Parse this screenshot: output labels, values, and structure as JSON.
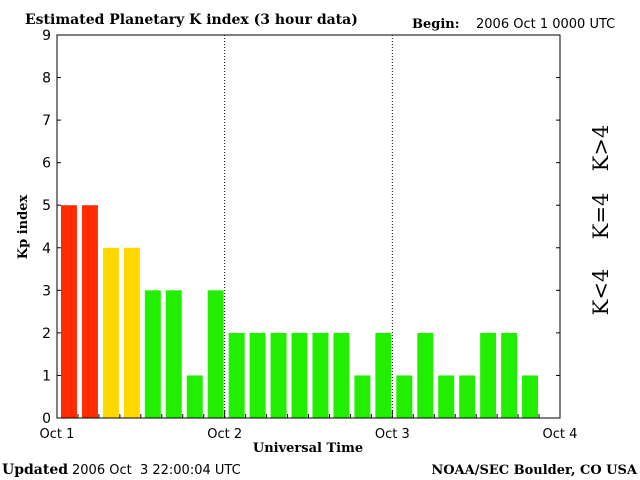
{
  "header": {
    "title": "Estimated Planetary K index (3 hour data)",
    "begin_label": "Begin:",
    "begin_value": "2006 Oct 1 0000 UTC"
  },
  "footer": {
    "updated_label": "Updated",
    "updated_value": "2006 Oct  3 22:00:04 UTC",
    "source": "NOAA/SEC Boulder, CO USA"
  },
  "legend": [
    {
      "label": "K>4",
      "color": "#ff2a00"
    },
    {
      "label": "K=4",
      "color": "#ffd800"
    },
    {
      "label": "K<4",
      "color": "#22ee00"
    }
  ],
  "chart_data": {
    "type": "bar",
    "title": "Estimated Planetary K index (3 hour data)",
    "xlabel": "Universal Time",
    "ylabel": "Kp index",
    "ylim": [
      0,
      9
    ],
    "yticks": [
      0,
      1,
      2,
      3,
      4,
      5,
      6,
      7,
      8,
      9
    ],
    "xlim_days": [
      0,
      3
    ],
    "xticks": [
      "Oct 1",
      "Oct 2",
      "Oct 3",
      "Oct 4"
    ],
    "day_separators": "dotted",
    "interval_hours": 3,
    "values": [
      5,
      5,
      4,
      4,
      3,
      3,
      1,
      3,
      2,
      2,
      2,
      2,
      2,
      2,
      1,
      2,
      1,
      2,
      1,
      1,
      2,
      2,
      1
    ],
    "colors": {
      "high": "#ff2a00",
      "equal": "#ffd800",
      "low": "#22ee00"
    }
  }
}
